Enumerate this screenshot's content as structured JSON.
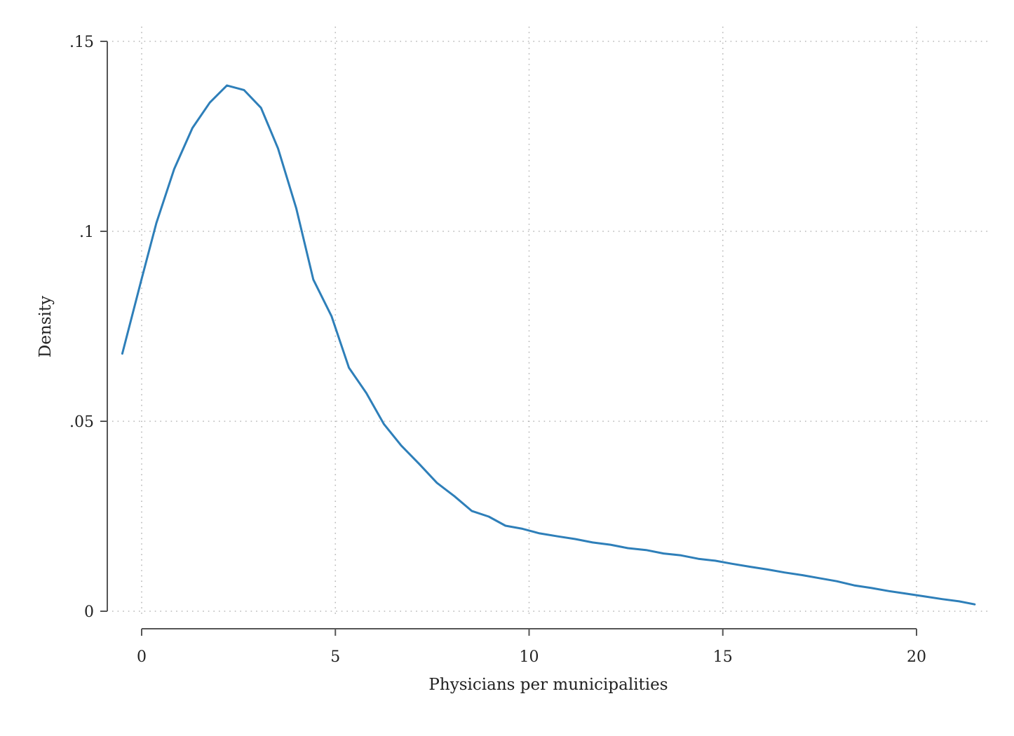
{
  "chart_data": {
    "type": "line",
    "title": "",
    "xlabel": "Physicians per municipalities",
    "ylabel": "Density",
    "xlim": [
      -1,
      22
    ],
    "ylim": [
      0,
      0.15
    ],
    "x_ticks": [
      {
        "value": 0,
        "label": "0"
      },
      {
        "value": 5,
        "label": "5"
      },
      {
        "value": 10,
        "label": "10"
      },
      {
        "value": 15,
        "label": "15"
      },
      {
        "value": 20,
        "label": "20"
      }
    ],
    "y_ticks": [
      {
        "value": 0,
        "label": "0"
      },
      {
        "value": 0.05,
        "label": ".05"
      },
      {
        "value": 0.1,
        "label": ".1"
      },
      {
        "value": 0.15,
        "label": ".15"
      }
    ],
    "grid": true,
    "legend": "none",
    "series": [
      {
        "color": "#2e7fb9",
        "x": [
          -0.5,
          0,
          0.38,
          0.84,
          1.31,
          1.76,
          2.2,
          2.64,
          3.08,
          3.52,
          3.99,
          4.43,
          4.9,
          5.35,
          5.8,
          6.25,
          6.7,
          7.17,
          7.62,
          8.07,
          8.52,
          8.96,
          9.39,
          9.83,
          10.27,
          10.74,
          11.19,
          11.64,
          12.1,
          12.55,
          13.02,
          13.47,
          13.92,
          14.37,
          14.8,
          15.24,
          15.71,
          16.15,
          16.59,
          17.05,
          17.49,
          17.94,
          18.39,
          18.84,
          19.29,
          19.76,
          20.21,
          20.66,
          21.1,
          21.5
        ],
        "y": [
          0.0678,
          0.0875,
          0.1022,
          0.1164,
          0.1272,
          0.1339,
          0.1384,
          0.1372,
          0.1325,
          0.1218,
          0.1061,
          0.0873,
          0.0777,
          0.0641,
          0.0574,
          0.0493,
          0.0436,
          0.0387,
          0.0338,
          0.0303,
          0.0264,
          0.0249,
          0.0225,
          0.0217,
          0.0205,
          0.0197,
          0.019,
          0.0181,
          0.0175,
          0.0166,
          0.0161,
          0.0152,
          0.0147,
          0.0138,
          0.0133,
          0.0125,
          0.0117,
          0.011,
          0.0102,
          0.0095,
          0.0087,
          0.0079,
          0.0068,
          0.0061,
          0.0053,
          0.0046,
          0.0039,
          0.0032,
          0.0026,
          0.0018
        ]
      }
    ]
  }
}
